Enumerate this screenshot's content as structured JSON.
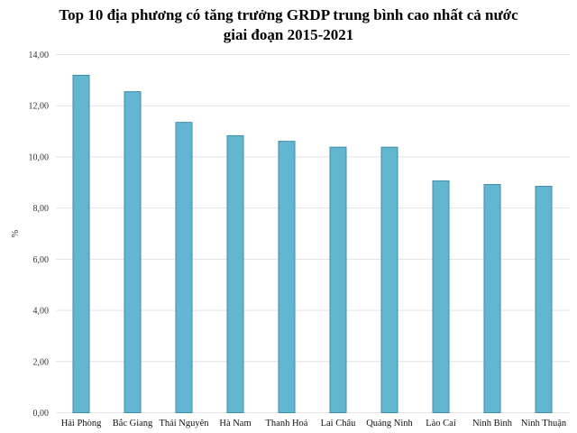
{
  "chart_data": {
    "type": "bar",
    "title": [
      "Top 10 địa phương có tăng trưởng GRDP trung bình cao nhất cả nước",
      "giai đoạn 2015-2021"
    ],
    "xlabel": "",
    "ylabel": "%",
    "ylim": [
      0,
      14
    ],
    "yticks": [
      0,
      2,
      4,
      6,
      8,
      10,
      12,
      14
    ],
    "ytick_labels": [
      "0,00",
      "2,00",
      "4,00",
      "6,00",
      "8,00",
      "10,00",
      "12,00",
      "14,00"
    ],
    "grid": true,
    "bar_color": "#62b6cf",
    "bar_edge": "#3f8ea6",
    "categories": [
      "Hải Phòng",
      "Bắc Giang",
      "Thái Nguyên",
      "Hà Nam",
      "Thanh Hoá",
      "Lai Châu",
      "Quảng Ninh",
      "Lào Cai",
      "Ninh Bình",
      "Ninh Thuận"
    ],
    "values": [
      13.19,
      12.55,
      11.35,
      10.83,
      10.61,
      10.38,
      10.38,
      9.06,
      8.92,
      8.85
    ]
  }
}
